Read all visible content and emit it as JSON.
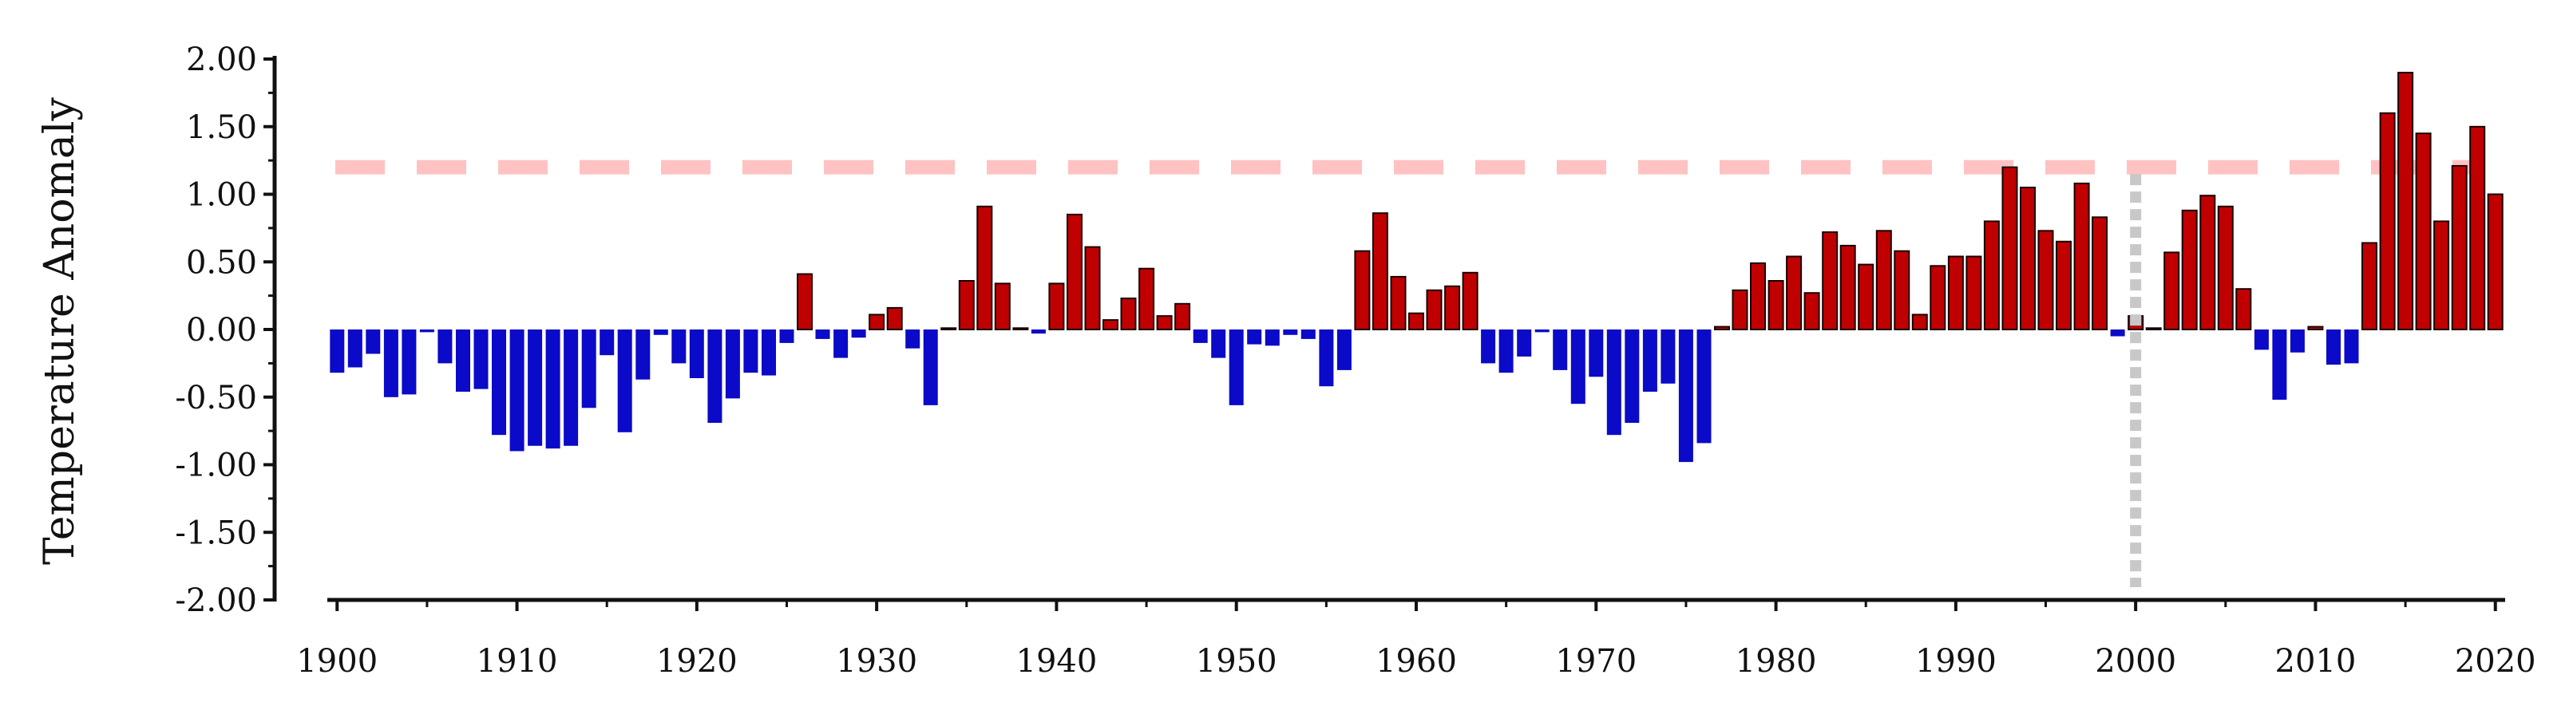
{
  "chart_data": {
    "type": "bar",
    "title": "",
    "ylabel": "Temperature Anomaly",
    "xlabel": "",
    "ylim": [
      -2.0,
      2.0
    ],
    "xlim": [
      1899.5,
      2020.5
    ],
    "grid": false,
    "y_ticks": [
      "-2.00",
      "-1.50",
      "-1.00",
      "-0.50",
      "0.00",
      "0.50",
      "1.00",
      "1.50",
      "2.00"
    ],
    "y_tick_values": [
      -2.0,
      -1.5,
      -1.0,
      -0.5,
      0.0,
      0.5,
      1.0,
      1.5,
      2.0
    ],
    "x_ticks": [
      "1900",
      "1910",
      "1920",
      "1930",
      "1940",
      "1950",
      "1960",
      "1970",
      "1980",
      "1990",
      "2000",
      "2010",
      "2020"
    ],
    "x_tick_values": [
      1900,
      1910,
      1920,
      1930,
      1940,
      1950,
      1960,
      1970,
      1980,
      1990,
      2000,
      2010,
      2020
    ],
    "threshold_line": 1.2,
    "reference_year": 2000,
    "colors": {
      "positive": "#c00000",
      "negative": "#0a0ac8",
      "threshold": "#ffc2c2",
      "reference": "#c8c8c8",
      "axis": "#111111"
    },
    "years": [
      1900,
      1901,
      1902,
      1903,
      1904,
      1905,
      1906,
      1907,
      1908,
      1909,
      1910,
      1911,
      1912,
      1913,
      1914,
      1915,
      1916,
      1917,
      1918,
      1919,
      1920,
      1921,
      1922,
      1923,
      1924,
      1925,
      1926,
      1927,
      1928,
      1929,
      1930,
      1931,
      1932,
      1933,
      1934,
      1935,
      1936,
      1937,
      1938,
      1939,
      1940,
      1941,
      1942,
      1943,
      1944,
      1945,
      1946,
      1947,
      1948,
      1949,
      1950,
      1951,
      1952,
      1953,
      1954,
      1955,
      1956,
      1957,
      1958,
      1959,
      1960,
      1961,
      1962,
      1963,
      1964,
      1965,
      1966,
      1967,
      1968,
      1969,
      1970,
      1971,
      1972,
      1973,
      1974,
      1975,
      1976,
      1977,
      1978,
      1979,
      1980,
      1981,
      1982,
      1983,
      1984,
      1985,
      1986,
      1987,
      1988,
      1989,
      1990,
      1991,
      1992,
      1993,
      1994,
      1995,
      1996,
      1997,
      1998,
      1999,
      2000,
      2001,
      2002,
      2003,
      2004,
      2005,
      2006,
      2007,
      2008,
      2009,
      2010,
      2011,
      2012,
      2013,
      2014,
      2015,
      2016,
      2017,
      2018,
      2019,
      2020
    ],
    "values": [
      -0.32,
      -0.28,
      -0.18,
      -0.5,
      -0.48,
      -0.02,
      -0.25,
      -0.46,
      -0.44,
      -0.78,
      -0.9,
      -0.86,
      -0.88,
      -0.86,
      -0.58,
      -0.19,
      -0.76,
      -0.37,
      -0.04,
      -0.25,
      -0.36,
      -0.69,
      -0.51,
      -0.32,
      -0.34,
      -0.1,
      0.41,
      -0.07,
      -0.21,
      -0.06,
      0.11,
      0.16,
      -0.14,
      -0.56,
      0.01,
      0.36,
      0.91,
      0.34,
      0.01,
      -0.03,
      0.34,
      0.85,
      0.61,
      0.07,
      0.23,
      0.45,
      0.1,
      0.19,
      -0.1,
      -0.21,
      -0.56,
      -0.11,
      -0.12,
      -0.04,
      -0.07,
      -0.42,
      -0.3,
      0.58,
      0.86,
      0.39,
      0.12,
      0.29,
      0.32,
      0.42,
      -0.25,
      -0.32,
      -0.2,
      -0.02,
      -0.3,
      -0.55,
      -0.35,
      -0.78,
      -0.69,
      -0.46,
      -0.4,
      -0.98,
      -0.84,
      0.02,
      0.29,
      0.49,
      0.36,
      0.54,
      0.27,
      0.72,
      0.62,
      0.48,
      0.73,
      0.58,
      0.11,
      0.47,
      0.54,
      0.54,
      0.8,
      1.2,
      1.05,
      0.73,
      0.65,
      1.08,
      0.83,
      -0.05,
      0.1,
      0.01,
      0.57,
      0.88,
      0.99,
      0.91,
      0.3,
      -0.15,
      -0.52,
      -0.17,
      0.02,
      -0.26,
      -0.25,
      0.64,
      1.6,
      1.9,
      1.45,
      0.8,
      1.21,
      1.5,
      1.0
    ]
  }
}
